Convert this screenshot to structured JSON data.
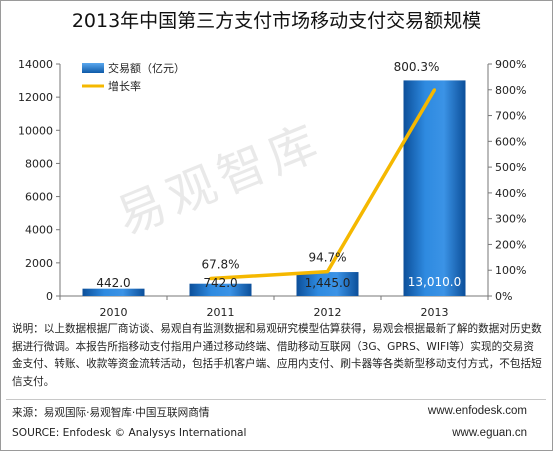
{
  "title": "2013年中国第三方支付市场移动支付交易额规模",
  "chart_data": {
    "type": "bar",
    "categories": [
      "2010",
      "2011",
      "2012",
      "2013"
    ],
    "series": [
      {
        "name": "交易额（亿元）",
        "type": "bar",
        "axis": "left",
        "values": [
          442.0,
          742.0,
          1445.0,
          13010.0
        ],
        "labels": [
          "442.0",
          "742.0",
          "1,445.0",
          "13,010.0"
        ]
      },
      {
        "name": "增长率",
        "type": "line",
        "axis": "right",
        "values": [
          null,
          67.8,
          94.7,
          800.3
        ],
        "labels": [
          "",
          "67.8%",
          "94.7%",
          "800.3%"
        ]
      }
    ],
    "ylim_left": [
      0,
      14000
    ],
    "yticks_left": [
      "0",
      "2000",
      "4000",
      "6000",
      "8000",
      "10000",
      "12000",
      "14000"
    ],
    "ylim_right": [
      0,
      900
    ],
    "yticks_right": [
      "0%",
      "100%",
      "200%",
      "300%",
      "400%",
      "500%",
      "600%",
      "700%",
      "800%",
      "900%"
    ],
    "legend_position": "top-left",
    "grid": false
  },
  "colors": {
    "bar": "#1e72c8",
    "line": "#f5b800"
  },
  "note": "说明：以上数据根据厂商访谈、易观自有监测数据和易观研究模型估算获得，易观会根据最新了解的数据对历史数据进行微调。本报告所指移动支付指用户通过移动终端、借助移动互联网（3G、GPRS、WIFI等）实现的交易资金支付、转账、收款等资金流转活动，包括手机客户端、应用内支付、刷卡器等各类新型移动支付方式，不包括短信支付。",
  "source_cn": "来源：易观国际·易观智库·中国互联网商情",
  "source_en": "SOURCE: Enfodesk © Analysys International",
  "site1": "www.enfodesk.com",
  "site2": "www.eguan.cn",
  "watermark": "易观智库"
}
